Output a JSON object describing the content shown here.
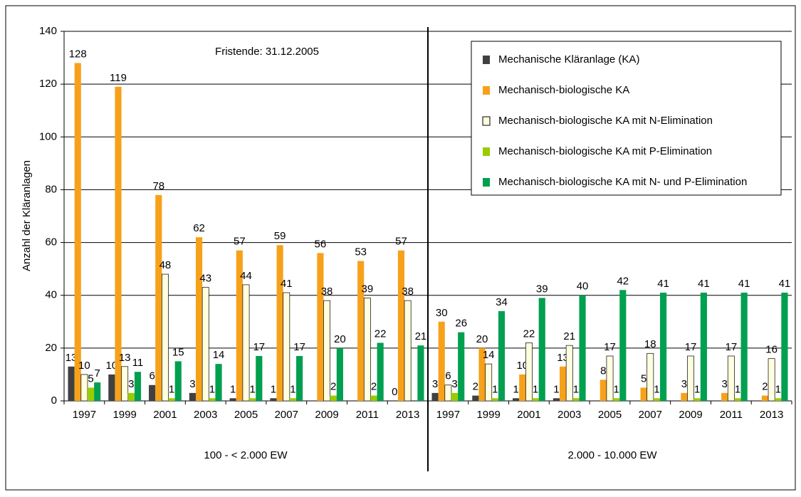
{
  "chart_data": {
    "type": "bar",
    "y_label": "Anzahl der Kläranlagen",
    "annotation": "Fristende: 31.12.2005",
    "group_labels": [
      "100 - < 2.000 EW",
      "2.000 - 10.000 EW"
    ],
    "categories": [
      "1997",
      "1999",
      "2001",
      "2003",
      "2005",
      "2007",
      "2009",
      "2011",
      "2013",
      "1997",
      "1999",
      "2001",
      "2003",
      "2005",
      "2007",
      "2009",
      "2011",
      "2013"
    ],
    "series": [
      {
        "name": "Mechanische Kläranlage (KA)",
        "color": "#404040",
        "values": [
          13,
          10,
          6,
          3,
          1,
          1,
          null,
          null,
          0,
          3,
          2,
          1,
          1,
          null,
          null,
          null,
          null,
          null
        ]
      },
      {
        "name": "Mechanisch-biologische KA",
        "color": "#f7a11a",
        "values": [
          128,
          119,
          78,
          62,
          57,
          59,
          56,
          53,
          57,
          30,
          20,
          10,
          13,
          8,
          5,
          3,
          3,
          2
        ]
      },
      {
        "name": "Mechanisch-biologische KA mit N-Elimination",
        "color": "#ffffe0",
        "values": [
          10,
          13,
          48,
          43,
          44,
          41,
          38,
          39,
          38,
          6,
          14,
          22,
          21,
          17,
          18,
          17,
          17,
          16
        ]
      },
      {
        "name": "Mechanisch-biologische KA mit P-Elimination",
        "color": "#99cc00",
        "values": [
          5,
          3,
          1,
          1,
          1,
          1,
          2,
          2,
          null,
          3,
          1,
          1,
          1,
          1,
          1,
          1,
          1,
          1
        ]
      },
      {
        "name": "Mechanisch-biologische KA mit N- und P-Elimination",
        "color": "#00a050",
        "values": [
          7,
          11,
          15,
          14,
          17,
          17,
          20,
          22,
          21,
          26,
          34,
          39,
          40,
          42,
          41,
          41,
          41,
          41
        ]
      }
    ],
    "ylim": [
      0,
      140
    ],
    "yticks": [
      0,
      20,
      40,
      60,
      80,
      100,
      120,
      140
    ],
    "grid": true
  }
}
